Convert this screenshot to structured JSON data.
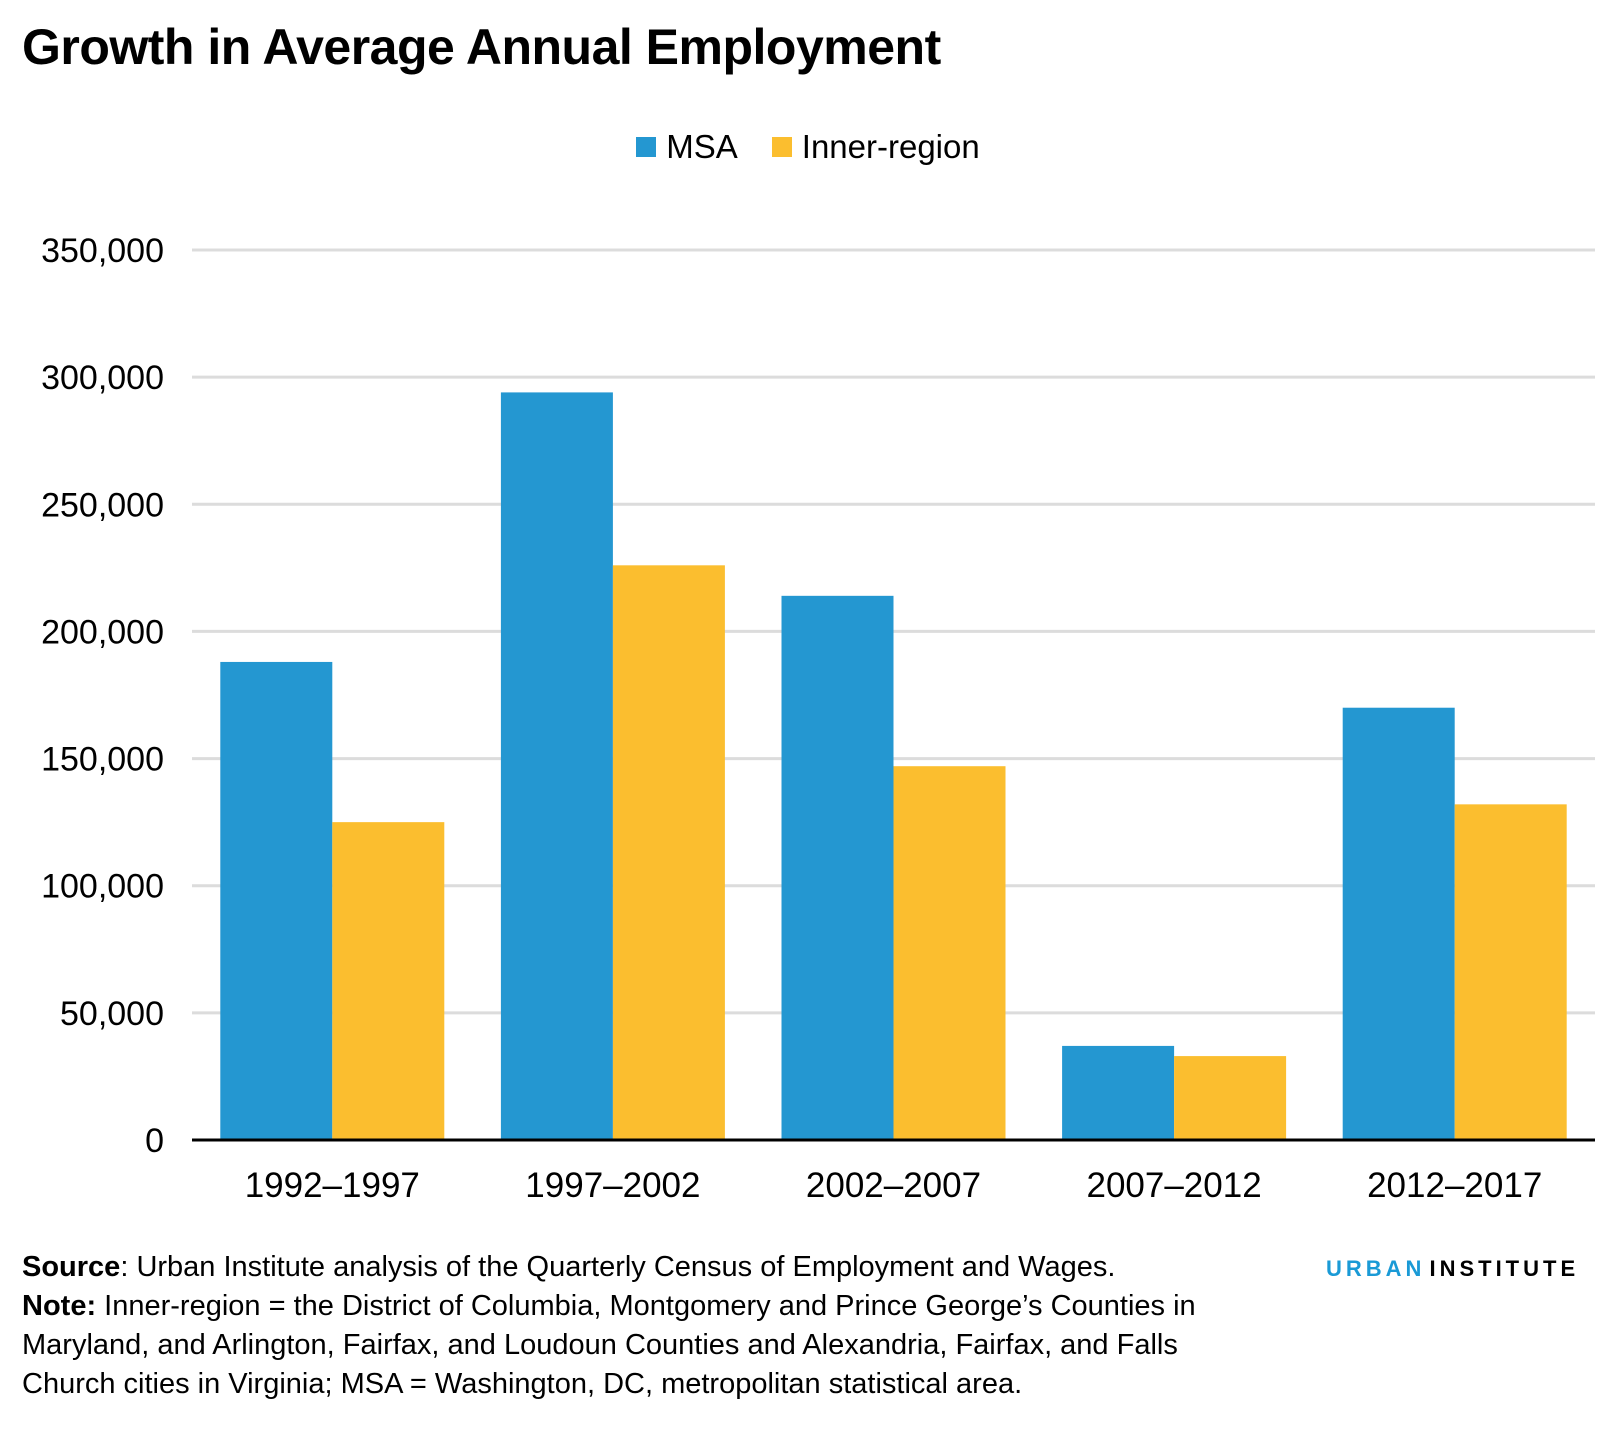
{
  "title": "Growth in Average Annual Employment",
  "colors": {
    "msa": "#2497d1",
    "inner": "#fbbe2f",
    "grid": "#dcdcdc",
    "axis": "#000000",
    "brand_blue": "#1a9ad6"
  },
  "chart_data": {
    "type": "bar",
    "categories": [
      "1992–1997",
      "1997–2002",
      "2002–2007",
      "2007–2012",
      "2012–2017"
    ],
    "series": [
      {
        "name": "MSA",
        "values": [
          188000,
          294000,
          214000,
          37000,
          170000
        ]
      },
      {
        "name": "Inner-region",
        "values": [
          125000,
          226000,
          147000,
          33000,
          132000
        ]
      }
    ],
    "yticks": [
      "0",
      "50,000",
      "100,000",
      "150,000",
      "200,000",
      "250,000",
      "300,000",
      "350,000"
    ],
    "ylim": [
      0,
      350000
    ],
    "grid": true,
    "legend": "top-center"
  },
  "footer": {
    "source_label": "Source",
    "source_text": ": Urban Institute analysis of the Quarterly Census of Employment and Wages.",
    "note_label": "Note:",
    "note_text": " Inner-region = the District of Columbia, Montgomery and Prince George’s Counties in Maryland, and Arlington, Fairfax, and Loudoun Counties and Alexandria, Fairfax, and Falls Church cities in Virginia; MSA = Washington, DC, metropolitan statistical area."
  },
  "brand": {
    "urban": "URBAN",
    "institute": "INSTITUTE"
  }
}
